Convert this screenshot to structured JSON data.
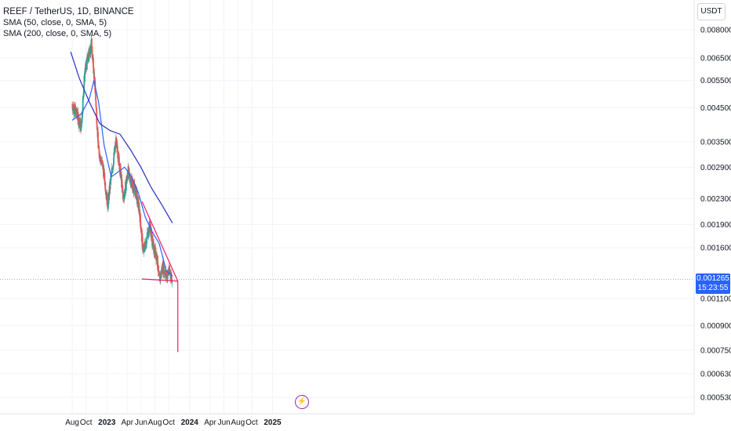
{
  "legend": {
    "title": "REEF / TetherUS, 1D, BINANCE",
    "sma1": "SMA (50, close, 0, SMA, 5)",
    "sma2": "SMA (200, close, 0, SMA, 5)"
  },
  "currency_button": "USDT",
  "last_price": {
    "value": "0.001265",
    "countdown": "15:23:55",
    "color": "#2962ff"
  },
  "alert_icon": "lightning-icon",
  "colors": {
    "up": "#26a69a",
    "down": "#ef5350",
    "sma50": "#2962ff",
    "sma200": "#2a2ebd",
    "pattern": "#e91e63",
    "grid": "#f0f3fa"
  },
  "chart_data": {
    "type": "candlestick",
    "symbol": "REEF / TetherUS",
    "interval": "1D",
    "exchange": "BINANCE",
    "y_scale": "log",
    "y_ticks": [
      "0.008000",
      "0.006500",
      "0.005500",
      "0.004500",
      "0.003500",
      "0.002900",
      "0.002300",
      "0.001900",
      "0.001600",
      "0.001100",
      "0.000900",
      "0.000750",
      "0.000630",
      "0.000530"
    ],
    "x_ticks": [
      "Aug",
      "Oct",
      "2023",
      "Apr",
      "Jun",
      "Aug",
      "Oct",
      "2024",
      "Apr",
      "Jun",
      "Aug",
      "Oct",
      "2025"
    ],
    "price_path": [
      [
        "2022-08-01",
        0.0046
      ],
      [
        "2022-08-20",
        0.0043
      ],
      [
        "2022-09-10",
        0.0039
      ],
      [
        "2022-09-25",
        0.0058
      ],
      [
        "2022-10-10",
        0.0065
      ],
      [
        "2022-10-25",
        0.0072
      ],
      [
        "2022-11-10",
        0.0052
      ],
      [
        "2022-11-25",
        0.0033
      ],
      [
        "2022-12-15",
        0.0029
      ],
      [
        "2023-01-05",
        0.0022
      ],
      [
        "2023-01-20",
        0.0027
      ],
      [
        "2023-02-10",
        0.0035
      ],
      [
        "2023-02-25",
        0.003
      ],
      [
        "2023-03-15",
        0.0023
      ],
      [
        "2023-04-05",
        0.0028
      ],
      [
        "2023-04-20",
        0.0026
      ],
      [
        "2023-05-10",
        0.0024
      ],
      [
        "2023-05-25",
        0.0021
      ],
      [
        "2023-06-10",
        0.00155
      ],
      [
        "2023-06-25",
        0.0017
      ],
      [
        "2023-07-10",
        0.0019
      ],
      [
        "2023-07-25",
        0.0016
      ],
      [
        "2023-08-10",
        0.0015
      ],
      [
        "2023-08-20",
        0.00125
      ],
      [
        "2023-09-05",
        0.0014
      ],
      [
        "2023-09-20",
        0.0013
      ],
      [
        "2023-10-05",
        0.00135
      ],
      [
        "2023-10-17",
        0.001265
      ]
    ],
    "series": [
      {
        "name": "SMA (50, close, 0, SMA, 5)",
        "color": "#2962ff",
        "points": [
          [
            "2022-08-01",
            0.0041
          ],
          [
            "2022-09-10",
            0.0043
          ],
          [
            "2022-10-15",
            0.0048
          ],
          [
            "2022-11-05",
            0.0055
          ],
          [
            "2022-11-25",
            0.0047
          ],
          [
            "2022-12-20",
            0.0034
          ],
          [
            "2023-01-20",
            0.0027
          ],
          [
            "2023-02-20",
            0.0028
          ],
          [
            "2023-03-20",
            0.0029
          ],
          [
            "2023-04-20",
            0.0027
          ],
          [
            "2023-05-20",
            0.0024
          ],
          [
            "2023-06-20",
            0.002
          ],
          [
            "2023-07-20",
            0.0018
          ],
          [
            "2023-08-20",
            0.00165
          ],
          [
            "2023-09-20",
            0.00135
          ],
          [
            "2023-10-17",
            0.0013
          ]
        ]
      },
      {
        "name": "SMA (200, close, 0, SMA, 5)",
        "color": "#2a2ebd",
        "points": [
          [
            "2022-07-25",
            0.0068
          ],
          [
            "2022-09-01",
            0.0056
          ],
          [
            "2022-10-15",
            0.0047
          ],
          [
            "2022-12-01",
            0.004
          ],
          [
            "2023-01-15",
            0.0038
          ],
          [
            "2023-02-28",
            0.0037
          ],
          [
            "2023-04-15",
            0.0033
          ],
          [
            "2023-05-31",
            0.0029
          ],
          [
            "2023-07-15",
            0.0025
          ],
          [
            "2023-08-31",
            0.0022
          ],
          [
            "2023-10-17",
            0.00192
          ]
        ]
      }
    ],
    "drawings": [
      {
        "name": "descending-trendline",
        "from": [
          "2023-06-05",
          0.00225
        ],
        "to": [
          "2023-11-10",
          0.00125
        ]
      },
      {
        "name": "support-line",
        "from": [
          "2023-06-05",
          0.00127
        ],
        "to": [
          "2023-11-10",
          0.00125
        ]
      },
      {
        "name": "target-line",
        "from": [
          "2023-11-10",
          0.00125
        ],
        "to": [
          "2023-11-10",
          0.00074
        ]
      }
    ],
    "current_price": 0.001265,
    "grid": true
  }
}
